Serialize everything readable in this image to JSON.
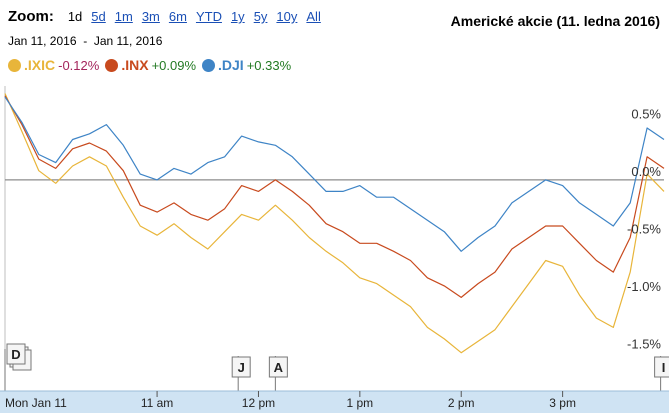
{
  "zoom": {
    "label": "Zoom:",
    "options": [
      "1d",
      "5d",
      "1m",
      "3m",
      "6m",
      "YTD",
      "1y",
      "5y",
      "10y",
      "All"
    ],
    "active": "1d"
  },
  "date_range": {
    "start": "Jan 11, 2016",
    "separator": "-",
    "end": "Jan 11, 2016"
  },
  "colors": {
    "ixic": "#e8b53a",
    "inx": "#c84a1e",
    "dji": "#3e84c6",
    "baseline": "#8c8c8c",
    "xaxis_band": "#cfe3f3"
  },
  "markers": [
    {
      "label": "D",
      "time": "09:30"
    },
    {
      "label": "J",
      "time": "11:48"
    },
    {
      "label": "A",
      "time": "12:10"
    },
    {
      "label": "I",
      "time": "15:58"
    }
  ],
  "chart_data": {
    "type": "line",
    "title": "Americké akcie (11. ledna 2016)",
    "x_unit": "time of day (HH:MM), Jan 11 2016",
    "x": [
      "09:30",
      "09:40",
      "09:50",
      "10:00",
      "10:10",
      "10:20",
      "10:30",
      "10:40",
      "10:50",
      "11:00",
      "11:10",
      "11:20",
      "11:30",
      "11:40",
      "11:50",
      "12:00",
      "12:10",
      "12:20",
      "12:30",
      "12:40",
      "12:50",
      "13:00",
      "13:10",
      "13:20",
      "13:30",
      "13:40",
      "13:50",
      "14:00",
      "14:10",
      "14:20",
      "14:30",
      "14:40",
      "14:50",
      "15:00",
      "15:10",
      "15:20",
      "15:30",
      "15:40",
      "15:50",
      "16:00"
    ],
    "xticks": [
      {
        "label": "Mon Jan 11",
        "time": "09:30"
      },
      {
        "label": "11 am",
        "time": "11:00"
      },
      {
        "label": "12 pm",
        "time": "12:00"
      },
      {
        "label": "1 pm",
        "time": "13:00"
      },
      {
        "label": "2 pm",
        "time": "14:00"
      },
      {
        "label": "3 pm",
        "time": "15:00"
      }
    ],
    "ylim": [
      -1.65,
      0.78
    ],
    "yticks": [
      0.5,
      0.0,
      -0.5,
      -1.0,
      -1.5
    ],
    "ytick_labels": [
      "0.5%",
      "0.0%",
      "-0.5%",
      "-1.0%",
      "-1.5%"
    ],
    "series": [
      {
        "name": ".IXIC",
        "change": "-0.12%",
        "color": "#e8b53a",
        "values": [
          0.75,
          0.42,
          0.08,
          -0.03,
          0.12,
          0.2,
          0.12,
          -0.15,
          -0.4,
          -0.48,
          -0.38,
          -0.5,
          -0.6,
          -0.45,
          -0.3,
          -0.35,
          -0.22,
          -0.35,
          -0.5,
          -0.62,
          -0.72,
          -0.85,
          -0.9,
          -1.0,
          -1.1,
          -1.28,
          -1.38,
          -1.5,
          -1.4,
          -1.3,
          -1.1,
          -0.9,
          -0.7,
          -0.75,
          -1.0,
          -1.2,
          -1.28,
          -0.8,
          0.05,
          -0.1
        ]
      },
      {
        "name": ".INX",
        "change": "+0.09%",
        "color": "#c84a1e",
        "values": [
          0.73,
          0.48,
          0.18,
          0.1,
          0.27,
          0.32,
          0.25,
          0.08,
          -0.22,
          -0.28,
          -0.2,
          -0.3,
          -0.35,
          -0.25,
          -0.05,
          -0.1,
          0.0,
          -0.1,
          -0.22,
          -0.38,
          -0.45,
          -0.55,
          -0.55,
          -0.62,
          -0.7,
          -0.85,
          -0.92,
          -1.02,
          -0.9,
          -0.8,
          -0.6,
          -0.5,
          -0.4,
          -0.4,
          -0.55,
          -0.7,
          -0.8,
          -0.5,
          0.2,
          0.1
        ]
      },
      {
        "name": ".DJI",
        "change": "+0.33%",
        "color": "#3e84c6",
        "values": [
          0.72,
          0.5,
          0.22,
          0.15,
          0.35,
          0.4,
          0.48,
          0.3,
          0.05,
          0.0,
          0.1,
          0.05,
          0.15,
          0.2,
          0.38,
          0.33,
          0.3,
          0.2,
          0.05,
          -0.1,
          -0.1,
          -0.05,
          -0.15,
          -0.15,
          -0.25,
          -0.35,
          -0.45,
          -0.62,
          -0.5,
          -0.4,
          -0.2,
          -0.1,
          0.0,
          -0.05,
          -0.2,
          -0.3,
          -0.4,
          -0.2,
          0.45,
          0.35
        ]
      }
    ]
  }
}
